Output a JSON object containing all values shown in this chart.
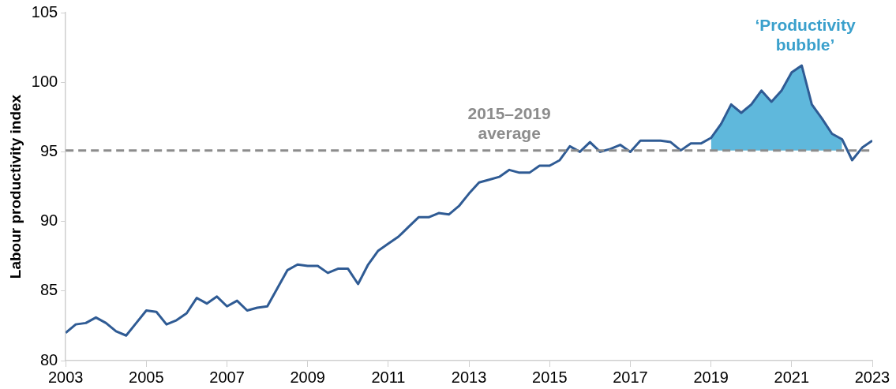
{
  "chart_data": {
    "type": "line",
    "ylabel": "Labour productivity index",
    "xlim": [
      2003,
      2023
    ],
    "xticks": [
      2003,
      2005,
      2007,
      2009,
      2011,
      2013,
      2015,
      2017,
      2019,
      2021,
      2023
    ],
    "ylim": [
      80,
      105
    ],
    "yticks": [
      80,
      85,
      90,
      95,
      100,
      105
    ],
    "grid": false,
    "x": [
      2003,
      2003.25,
      2003.5,
      2003.75,
      2004,
      2004.25,
      2004.5,
      2004.75,
      2005,
      2005.25,
      2005.5,
      2005.75,
      2006,
      2006.25,
      2006.5,
      2006.75,
      2007,
      2007.25,
      2007.5,
      2007.75,
      2008,
      2008.25,
      2008.5,
      2008.75,
      2009,
      2009.25,
      2009.5,
      2009.75,
      2010,
      2010.25,
      2010.5,
      2010.75,
      2011,
      2011.25,
      2011.5,
      2011.75,
      2012,
      2012.25,
      2012.5,
      2012.75,
      2013,
      2013.25,
      2013.5,
      2013.75,
      2014,
      2014.25,
      2014.5,
      2014.75,
      2015,
      2015.25,
      2015.5,
      2015.75,
      2016,
      2016.25,
      2016.5,
      2016.75,
      2017,
      2017.25,
      2017.5,
      2017.75,
      2018,
      2018.25,
      2018.5,
      2018.75,
      2019,
      2019.25,
      2019.5,
      2019.75,
      2020,
      2020.25,
      2020.5,
      2020.75,
      2021,
      2021.25,
      2021.5,
      2021.75,
      2022,
      2022.25,
      2022.5,
      2022.75,
      2023
    ],
    "series": [
      {
        "color": "#2f5b94",
        "values": [
          82.0,
          82.6,
          82.7,
          83.1,
          82.7,
          82.1,
          81.8,
          82.7,
          83.6,
          83.5,
          82.6,
          82.9,
          83.4,
          84.5,
          84.1,
          84.6,
          83.9,
          84.3,
          83.6,
          83.8,
          83.9,
          85.2,
          86.5,
          86.9,
          86.8,
          86.8,
          86.3,
          86.6,
          86.6,
          85.5,
          86.9,
          87.9,
          88.4,
          88.9,
          89.6,
          90.3,
          90.3,
          90.6,
          90.5,
          91.1,
          92.0,
          92.8,
          93.0,
          93.2,
          93.7,
          93.5,
          93.5,
          94.0,
          94.0,
          94.4,
          95.4,
          95.0,
          95.7,
          95.0,
          95.2,
          95.5,
          95.0,
          95.8,
          95.8,
          95.8,
          95.7,
          95.1,
          95.6,
          95.6,
          96.0,
          97.0,
          98.4,
          97.8,
          98.4,
          99.4,
          98.6,
          99.4,
          100.7,
          101.2,
          98.4,
          97.4,
          96.3,
          95.9,
          94.4,
          95.3,
          95.8
        ]
      },
      {
        "type": "area",
        "color": "#5fb8dc",
        "x": [
          2019,
          2019.25,
          2019.5,
          2019.75,
          2020,
          2020.25,
          2020.5,
          2020.75,
          2021,
          2021.25,
          2021.5,
          2021.75,
          2022,
          2022.25
        ],
        "values": [
          96.0,
          97.0,
          98.4,
          97.8,
          98.4,
          99.4,
          98.6,
          99.4,
          100.7,
          101.2,
          98.4,
          97.4,
          96.3,
          95.9
        ]
      }
    ],
    "ref_lines": [
      {
        "axis": "y",
        "value": 95.1,
        "label": "2015–2019 average",
        "color": "#8c8c8c",
        "line_style": "dashed"
      }
    ],
    "annotations": [
      "‘Productivity bubble’"
    ],
    "legend": false,
    "marker": "none",
    "line_style": "solid"
  }
}
